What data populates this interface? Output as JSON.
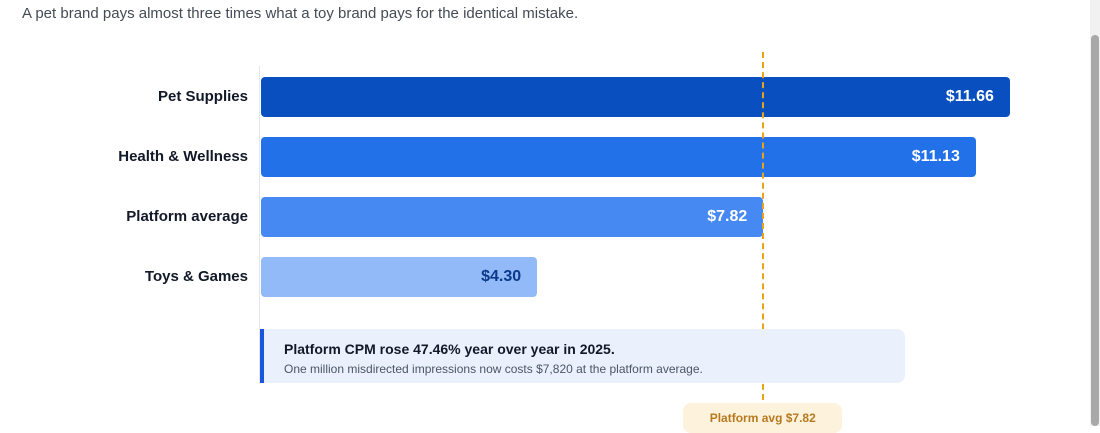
{
  "subtitle": "A pet brand pays almost three times what a toy brand pays for the identical mistake.",
  "chart_data": {
    "type": "bar",
    "orientation": "horizontal",
    "categories": [
      "Pet Supplies",
      "Health & Wellness",
      "Platform average",
      "Toys & Games"
    ],
    "values": [
      11.66,
      11.13,
      7.82,
      4.3
    ],
    "value_labels": [
      "$11.66",
      "$11.13",
      "$7.82",
      "$4.30"
    ],
    "colors": [
      "#0a4fbf",
      "#2371e9",
      "#4789f2",
      "#92baf8"
    ],
    "label_colors": [
      "#ffffff",
      "#ffffff",
      "#ffffff",
      "#0b3a8c"
    ],
    "xlim": [
      0,
      13.39
    ],
    "grid": false,
    "reference_line": {
      "value": 7.82,
      "label": "Platform avg $7.82",
      "color": "#e8a317"
    }
  },
  "callout": {
    "title": "Platform CPM rose 47.46% year over year in 2025.",
    "subtitle": "One million misdirected impressions now costs $7,820 at the platform average."
  }
}
